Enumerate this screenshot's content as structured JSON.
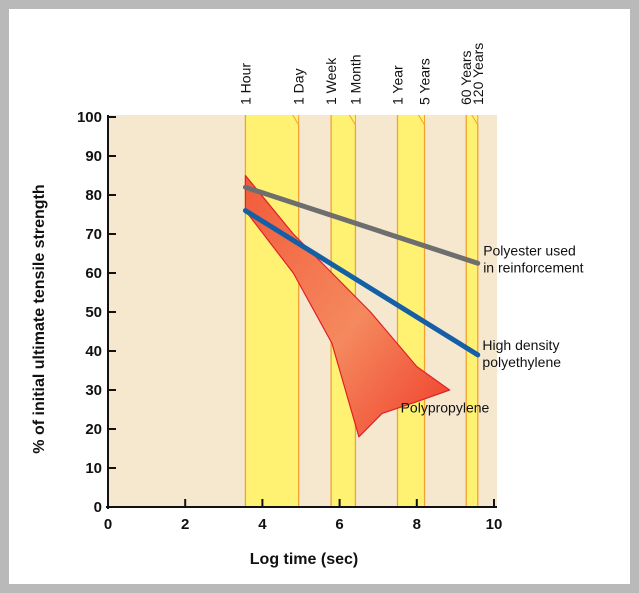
{
  "chart_data": {
    "type": "line",
    "xlabel": "Log time (sec)",
    "ylabel": "% of initial ultimate tensile strength",
    "xlim": [
      0,
      10
    ],
    "ylim": [
      0,
      100
    ],
    "x_ticks": [
      "0",
      "2",
      "4",
      "6",
      "8",
      "10"
    ],
    "y_ticks": [
      "0",
      "10",
      "20",
      "30",
      "40",
      "50",
      "60",
      "70",
      "80",
      "90",
      "100"
    ],
    "x_tick_values": [
      0,
      2,
      4,
      6,
      8,
      10
    ],
    "y_tick_values": [
      0,
      10,
      20,
      30,
      40,
      50,
      60,
      70,
      80,
      90,
      100
    ],
    "time_markers": [
      {
        "label": "1 Hour",
        "x": 3.56
      },
      {
        "label": "1 Day",
        "x": 4.94
      },
      {
        "label": "1 Week",
        "x": 5.78
      },
      {
        "label": "1 Month",
        "x": 6.41
      },
      {
        "label": "1 Year",
        "x": 7.5
      },
      {
        "label": "5 Years",
        "x": 8.2
      },
      {
        "label": "60 Years",
        "x": 9.28
      },
      {
        "label": "120 Years",
        "x": 9.58
      }
    ],
    "highlight_bands": [
      {
        "from": 3.56,
        "to": 4.94
      },
      {
        "from": 5.78,
        "to": 6.41
      },
      {
        "from": 7.5,
        "to": 8.2
      },
      {
        "from": 9.28,
        "to": 9.58
      }
    ],
    "series": [
      {
        "name": "Polyester used in reinforcement",
        "label_lines": [
          "Polyester used",
          "in reinforcement"
        ],
        "x": [
          3.56,
          9.58
        ],
        "y": [
          82,
          62.5
        ]
      },
      {
        "name": "High density polyethylene",
        "label_lines": [
          "High density",
          "polyethylene"
        ],
        "x": [
          3.56,
          9.58
        ],
        "y": [
          76,
          39
        ]
      }
    ],
    "area": {
      "name": "Polypropylene",
      "outline": [
        [
          3.56,
          85
        ],
        [
          4.8,
          70
        ],
        [
          6.8,
          50
        ],
        [
          8.0,
          36
        ],
        [
          8.85,
          30
        ],
        [
          8.0,
          27
        ],
        [
          7.1,
          24
        ],
        [
          6.5,
          18
        ],
        [
          5.8,
          42
        ],
        [
          4.8,
          60
        ],
        [
          3.56,
          76
        ]
      ]
    },
    "colors": {
      "polyester": "#6e6e6e",
      "hdpe": "#155fa6",
      "polypropylene": "#f25a3a",
      "background_band": "#f5e8cf",
      "highlight": "#fff272",
      "highlight_edge": "#f2a230"
    },
    "grid": false,
    "legend": "inline labels"
  }
}
